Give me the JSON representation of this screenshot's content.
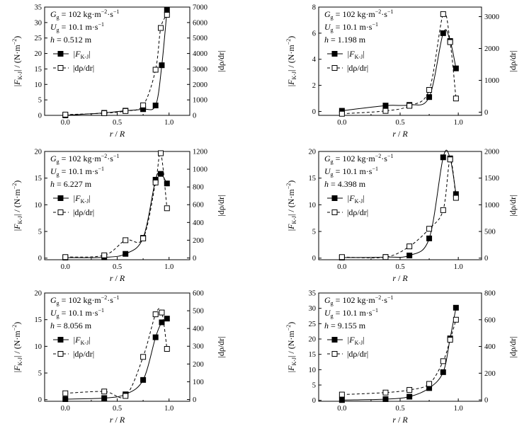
{
  "chart_data": [
    {
      "type": "line",
      "ann": {
        "gg": "G",
        "gg_sub": "g",
        "gg_val": " = 102 kg·m",
        "gg_exp": "−2",
        "gg_tail": "·s",
        "gg_exp2": "−1",
        "ug": "U",
        "ug_sub": "g",
        "ug_val": " = 10.1 m·s",
        "ug_exp": "−1",
        "h": "h",
        "h_val": " = 0.512 m"
      },
      "legend": {
        "f_prefix": "|F",
        "f_sub": "K-J",
        "f_suffix": "|",
        "d_label": "|dρ/dr|"
      },
      "xlabel": "r / R",
      "ylabel_left": "|F_K-J| / (N·m⁻²)",
      "ylabel_right": "|dρ/dr|",
      "xlim": [
        -0.2,
        1.2
      ],
      "xticks": [
        "0.0",
        "0.5",
        "1.0"
      ],
      "ylim_left": [
        0,
        35
      ],
      "yticks_left": [
        "0",
        "5",
        "10",
        "15",
        "20",
        "25",
        "30",
        "35"
      ],
      "ylim_right": [
        0,
        7000
      ],
      "yticks_right": [
        "0",
        "1000",
        "2000",
        "3000",
        "4000",
        "5000",
        "6000",
        "7000"
      ],
      "series": [
        {
          "name": "|F_K-J|",
          "axis": "left",
          "marker": "filled-square",
          "line": "solid",
          "x": [
            0.0,
            0.375,
            0.58,
            0.75,
            0.87,
            0.93,
            0.98
          ],
          "y": [
            0.0,
            0.8,
            1.5,
            2.0,
            3.2,
            16.2,
            34.0
          ]
        },
        {
          "name": "|dρ/dr|",
          "axis": "right",
          "marker": "open-square",
          "line": "dashed",
          "x": [
            0.0,
            0.375,
            0.58,
            0.75,
            0.87,
            0.92,
            0.98
          ],
          "y": [
            50,
            140,
            280,
            650,
            2950,
            5650,
            6500
          ]
        }
      ]
    },
    {
      "type": "line",
      "ann": {
        "gg": "G",
        "gg_sub": "g",
        "gg_val": " = 102 kg·m",
        "gg_exp": "−2",
        "gg_tail": "·s",
        "gg_exp2": "−1",
        "ug": "U",
        "ug_sub": "g",
        "ug_val": " = 10.1 m·s",
        "ug_exp": "−1",
        "h": "h",
        "h_val": " = 1.198 m"
      },
      "legend": {
        "f_prefix": "|F",
        "f_sub": "K-J",
        "f_suffix": "|",
        "d_label": "|dρ/dr|"
      },
      "xlabel": "r / R",
      "ylabel_left": "|F_K-J| / (N·m⁻²)",
      "ylabel_right": "|dρ/dr|",
      "xlim": [
        -0.2,
        1.2
      ],
      "xticks": [
        "0.0",
        "0.5",
        "1.0"
      ],
      "ylim_left": [
        -0.3,
        8
      ],
      "yticks_left": [
        "0",
        "2",
        "4",
        "6",
        "8"
      ],
      "ylim_right": [
        -100,
        3300
      ],
      "yticks_right": [
        "0",
        "1000",
        "2000",
        "3000"
      ],
      "series": [
        {
          "name": "|F_K-J|",
          "axis": "left",
          "marker": "filled-square",
          "line": "solid",
          "x": [
            0.0,
            0.375,
            0.58,
            0.75,
            0.87,
            0.93,
            0.98
          ],
          "y": [
            0.05,
            0.45,
            0.5,
            1.1,
            6.0,
            5.4,
            3.3
          ]
        },
        {
          "name": "|dρ/dr|",
          "axis": "right",
          "marker": "open-square",
          "line": "dashed",
          "x": [
            0.0,
            0.375,
            0.58,
            0.75,
            0.87,
            0.93,
            0.98
          ],
          "y": [
            -50,
            40,
            200,
            700,
            3080,
            2200,
            430
          ]
        }
      ]
    },
    {
      "type": "line",
      "ann": {
        "gg": "G",
        "gg_sub": "g",
        "gg_val": " = 102 kg·m",
        "gg_exp": "−2",
        "gg_tail": "·s",
        "gg_exp2": "−1",
        "ug": "U",
        "ug_sub": "g",
        "ug_val": " = 10.1 m·s",
        "ug_exp": "−1",
        "h": "h",
        "h_val": " = 6.227 m"
      },
      "legend": {
        "f_prefix": "|F",
        "f_sub": "K-J",
        "f_suffix": "|",
        "d_label": "|dρ/dr|"
      },
      "xlabel": "r / R",
      "ylabel_left": "|F_K-J| / (N·m⁻²)",
      "ylabel_right": "|dρ/dr|",
      "xlim": [
        -0.2,
        1.2
      ],
      "xticks": [
        "0.0",
        "0.5",
        "1.0"
      ],
      "ylim_left": [
        -0.3,
        20
      ],
      "yticks_left": [
        "0",
        "5",
        "10",
        "15",
        "20"
      ],
      "ylim_right": [
        -20,
        1200
      ],
      "yticks_right": [
        "0",
        "200",
        "400",
        "600",
        "800",
        "1000",
        "1200"
      ],
      "series": [
        {
          "name": "|F_K-J|",
          "axis": "left",
          "marker": "filled-square",
          "line": "solid",
          "x": [
            0.0,
            0.375,
            0.58,
            0.75,
            0.87,
            0.92,
            0.98
          ],
          "y": [
            0.1,
            0.15,
            0.8,
            3.8,
            14.7,
            15.8,
            14.0
          ]
        },
        {
          "name": "|dρ/dr|",
          "axis": "right",
          "marker": "open-square",
          "line": "dashed",
          "x": [
            0.0,
            0.375,
            0.58,
            0.75,
            0.87,
            0.92,
            0.98
          ],
          "y": [
            10,
            30,
            200,
            220,
            850,
            1180,
            560
          ]
        }
      ]
    },
    {
      "type": "line",
      "ann": {
        "gg": "G",
        "gg_sub": "g",
        "gg_val": " = 102 kg·m",
        "gg_exp": "−2",
        "gg_tail": "·s",
        "gg_exp2": "−1",
        "ug": "U",
        "ug_sub": "g",
        "ug_val": " = 10.1 m·s",
        "ug_exp": "−1",
        "h": "h",
        "h_val": " = 4.398 m"
      },
      "legend": {
        "f_prefix": "|F",
        "f_sub": "K-J",
        "f_suffix": "|",
        "d_label": "|dρ/dr|"
      },
      "xlabel": "r / R",
      "ylabel_left": "|F_K-J| / (N·m⁻²)",
      "ylabel_right": "|dρ/dr|",
      "xlim": [
        -0.2,
        1.2
      ],
      "xticks": [
        "0.0",
        "0.5",
        "1.0"
      ],
      "ylim_left": [
        -0.3,
        20
      ],
      "yticks_left": [
        "0",
        "5",
        "10",
        "15",
        "20"
      ],
      "ylim_right": [
        -30,
        2000
      ],
      "yticks_right": [
        "0",
        "500",
        "1000",
        "1500",
        "2000"
      ],
      "series": [
        {
          "name": "|F_K-J|",
          "axis": "left",
          "marker": "filled-square",
          "line": "solid",
          "x": [
            0.0,
            0.375,
            0.58,
            0.75,
            0.87,
            0.93,
            0.98
          ],
          "y": [
            0.1,
            0.2,
            0.5,
            3.7,
            18.9,
            18.7,
            12.0
          ]
        },
        {
          "name": "|dρ/dr|",
          "axis": "right",
          "marker": "open-square",
          "line": "dashed",
          "x": [
            0.0,
            0.375,
            0.58,
            0.75,
            0.87,
            0.93,
            0.98
          ],
          "y": [
            20,
            20,
            220,
            550,
            900,
            1850,
            1130
          ]
        }
      ]
    },
    {
      "type": "line",
      "ann": {
        "gg": "G",
        "gg_sub": "g",
        "gg_val": " = 102 kg·m",
        "gg_exp": "−2",
        "gg_tail": "·s",
        "gg_exp2": "−1",
        "ug": "U",
        "ug_sub": "g",
        "ug_val": " = 10.1 m·s",
        "ug_exp": "−1",
        "h": "h",
        "h_val": " = 8.056 m"
      },
      "legend": {
        "f_prefix": "|F",
        "f_sub": "K-J",
        "f_suffix": "|",
        "d_label": "|dρ/dr|"
      },
      "xlabel": "r / R",
      "ylabel_left": "|F_K-J| / (N·m⁻²)",
      "ylabel_right": "|dρ/dr|",
      "xlim": [
        -0.2,
        1.2
      ],
      "xticks": [
        "0.0",
        "0.5",
        "1.0"
      ],
      "ylim_left": [
        -0.3,
        20
      ],
      "yticks_left": [
        "0",
        "5",
        "10",
        "15",
        "20"
      ],
      "ylim_right": [
        -10,
        600
      ],
      "yticks_right": [
        "0",
        "100",
        "200",
        "300",
        "400",
        "500",
        "600"
      ],
      "series": [
        {
          "name": "|F_K-J|",
          "axis": "left",
          "marker": "filled-square",
          "line": "solid",
          "x": [
            0.0,
            0.375,
            0.58,
            0.75,
            0.87,
            0.93,
            0.98
          ],
          "y": [
            0.1,
            0.3,
            1.0,
            3.7,
            11.7,
            14.5,
            15.2
          ]
        },
        {
          "name": "|dρ/dr|",
          "axis": "right",
          "marker": "open-square",
          "line": "dashed",
          "x": [
            0.0,
            0.375,
            0.58,
            0.75,
            0.87,
            0.93,
            0.98
          ],
          "y": [
            35,
            45,
            20,
            240,
            480,
            490,
            285
          ]
        }
      ]
    },
    {
      "type": "line",
      "ann": {
        "gg": "G",
        "gg_sub": "g",
        "gg_val": " = 102 kg·m",
        "gg_exp": "−2",
        "gg_tail": "·s",
        "gg_exp2": "−1",
        "ug": "U",
        "ug_sub": "g",
        "ug_val": " = 10.1 m·s",
        "ug_exp": "−1",
        "h": "h",
        "h_val": " = 9.155 m"
      },
      "legend": {
        "f_prefix": "|F",
        "f_sub": "K-J",
        "f_suffix": "|",
        "d_label": "|dρ/dr|"
      },
      "xlabel": "r / R",
      "ylabel_left": "|F_K-J| / (N·m⁻²)",
      "ylabel_right": "|dρ/dr|",
      "xlim": [
        -0.2,
        1.2
      ],
      "xticks": [
        "0.0",
        "0.5",
        "1.0"
      ],
      "ylim_left": [
        -0.3,
        35
      ],
      "yticks_left": [
        "0",
        "5",
        "10",
        "15",
        "20",
        "25",
        "30",
        "35"
      ],
      "ylim_right": [
        -10,
        800
      ],
      "yticks_right": [
        "0",
        "200",
        "400",
        "600",
        "800"
      ],
      "series": [
        {
          "name": "|F_K-J|",
          "axis": "left",
          "marker": "filled-square",
          "line": "solid",
          "x": [
            0.0,
            0.375,
            0.58,
            0.75,
            0.87,
            0.93,
            0.98
          ],
          "y": [
            0.1,
            0.4,
            1.2,
            4.0,
            9.2,
            20.2,
            30.2
          ]
        },
        {
          "name": "|dρ/dr|",
          "axis": "right",
          "marker": "open-square",
          "line": "dashed",
          "x": [
            0.0,
            0.375,
            0.58,
            0.75,
            0.87,
            0.93,
            0.98
          ],
          "y": [
            40,
            55,
            75,
            120,
            290,
            450,
            600
          ]
        }
      ]
    }
  ]
}
